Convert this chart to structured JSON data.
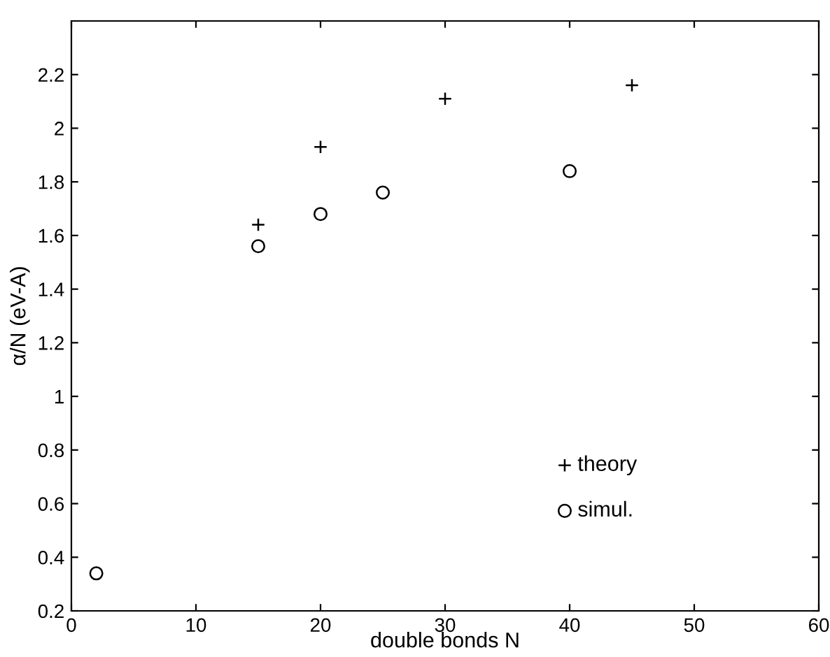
{
  "chart_data": {
    "type": "scatter",
    "xlabel": "double bonds N",
    "ylabel": "α/N (eV-A)",
    "xlim": [
      0,
      60
    ],
    "xticks": [
      0,
      10,
      20,
      30,
      40,
      50,
      60
    ],
    "ylim": [
      0.2,
      2.4
    ],
    "yticks": [
      0.2,
      0.4,
      0.6,
      0.8,
      {
        "value": 1.0,
        "label": "1"
      },
      1.2,
      1.4,
      1.6,
      1.8,
      {
        "value": 2.0,
        "label": "2"
      },
      2.2
    ],
    "grid": false,
    "legend": "bottom right",
    "series": [
      {
        "name": "theory",
        "color": "#000000",
        "marker": "cross",
        "x": [
          15,
          20,
          30,
          45
        ],
        "values": [
          1.64,
          1.93,
          2.11,
          2.16
        ]
      },
      {
        "name": "simul.",
        "color": "#000000",
        "marker": "circle",
        "x": [
          2,
          15,
          20,
          25,
          40
        ],
        "values": [
          0.34,
          1.56,
          1.68,
          1.76,
          1.84
        ]
      }
    ]
  }
}
